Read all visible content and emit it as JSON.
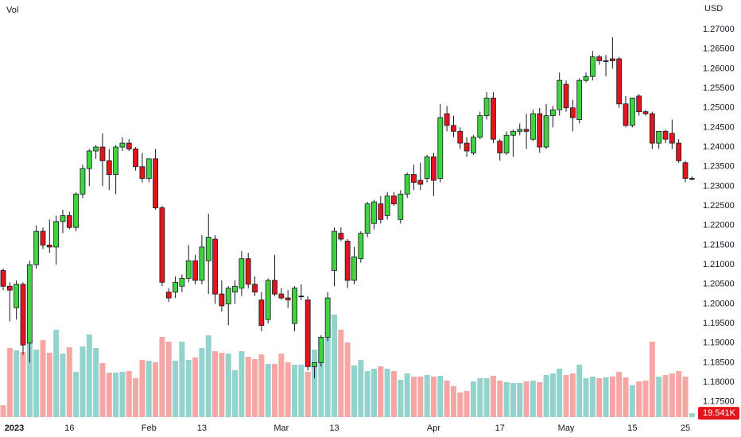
{
  "chart_data": {
    "type": "candlestick",
    "volume_title": "Vol",
    "currency": "USD",
    "categories": [
      "2023",
      null,
      null,
      null,
      null,
      null,
      null,
      null,
      null,
      null,
      "16",
      null,
      null,
      null,
      null,
      null,
      null,
      null,
      null,
      null,
      null,
      null,
      "Feb",
      null,
      null,
      null,
      null,
      null,
      null,
      null,
      "13",
      null,
      null,
      null,
      null,
      null,
      null,
      null,
      null,
      null,
      null,
      null,
      "Mar",
      null,
      null,
      null,
      null,
      null,
      null,
      null,
      "13",
      null,
      null,
      null,
      null,
      null,
      null,
      null,
      null,
      null,
      null,
      null,
      null,
      null,
      null,
      "Apr",
      null,
      null,
      null,
      null,
      null,
      null,
      null,
      null,
      null,
      "17",
      null,
      null,
      null,
      null,
      null,
      null,
      null,
      null,
      null,
      "May",
      null,
      null,
      null,
      null,
      null,
      null,
      null,
      null,
      null,
      "15",
      null,
      null,
      null,
      null,
      null,
      null,
      null,
      "25",
      null
    ],
    "open": [
      1.2085,
      1.2045,
      1.199,
      1.205,
      1.19,
      1.21,
      1.2185,
      1.215,
      1.2145,
      1.221,
      1.2225,
      1.2195,
      1.228,
      1.2345,
      1.239,
      1.24,
      1.2365,
      1.233,
      1.24,
      1.241,
      1.2395,
      1.235,
      1.232,
      1.237,
      1.2245,
      1.203,
      1.203,
      1.2045,
      1.2065,
      1.211,
      1.206,
      1.211,
      1.2165,
      1.2025,
      1.2,
      1.203,
      1.204,
      1.2115,
      1.205,
      1.201,
      1.196,
      1.206,
      1.2025,
      1.2015,
      1.195,
      1.202,
      1.201,
      1.184,
      1.185,
      1.1915,
      1.2085,
      1.218,
      1.216,
      1.206,
      1.2115,
      1.218,
      1.2205,
      1.2255,
      1.2225,
      1.2275,
      1.2215,
      1.228,
      1.233,
      1.2315,
      1.232,
      1.2375,
      1.232,
      1.2485,
      1.2455,
      1.244,
      1.241,
      1.2385,
      1.2425,
      1.248,
      1.2525,
      1.2415,
      1.2385,
      1.243,
      1.244,
      1.2445,
      1.242,
      1.2485,
      1.24,
      1.248,
      1.2495,
      1.256,
      1.25,
      1.247,
      1.257,
      1.258,
      1.263,
      1.262,
      1.2625,
      1.2625,
      1.251,
      1.2455,
      1.253,
      1.249,
      1.2485,
      1.241,
      1.244,
      1.2435,
      1.241,
      1.236,
      1.232
    ],
    "high": [
      1.209,
      1.2055,
      1.206,
      1.2055,
      1.211,
      1.22,
      1.2195,
      1.2215,
      1.2225,
      1.224,
      1.2235,
      1.2285,
      1.2355,
      1.2395,
      1.2405,
      1.2435,
      1.2395,
      1.2405,
      1.2425,
      1.242,
      1.24,
      1.2385,
      1.237,
      1.2395,
      1.225,
      1.204,
      1.207,
      1.2075,
      1.215,
      1.2125,
      1.2175,
      1.223,
      1.2175,
      1.206,
      1.2045,
      1.206,
      1.2135,
      1.213,
      1.207,
      1.203,
      1.2065,
      1.2125,
      1.204,
      1.2035,
      1.2045,
      1.205,
      1.202,
      1.185,
      1.192,
      1.203,
      1.2195,
      1.2195,
      1.2165,
      1.2145,
      1.2185,
      1.226,
      1.2265,
      1.2275,
      1.2285,
      1.2285,
      1.229,
      1.2335,
      1.2355,
      1.236,
      1.238,
      1.2385,
      1.251,
      1.2505,
      1.248,
      1.245,
      1.2425,
      1.243,
      1.249,
      1.254,
      1.254,
      1.242,
      1.244,
      1.2445,
      1.246,
      1.2485,
      1.2495,
      1.25,
      1.251,
      1.2505,
      1.259,
      1.257,
      1.252,
      1.2575,
      1.259,
      1.2645,
      1.2635,
      1.2635,
      1.268,
      1.263,
      1.253,
      1.2525,
      1.2535,
      1.2495,
      1.249,
      1.244,
      1.2445,
      1.247,
      1.242,
      1.2365,
      1.2325
    ],
    "low": [
      1.2035,
      1.1955,
      1.196,
      1.187,
      1.185,
      1.209,
      1.214,
      1.213,
      1.21,
      1.218,
      1.219,
      1.2185,
      1.227,
      1.23,
      1.237,
      1.23,
      1.229,
      1.228,
      1.239,
      1.239,
      1.234,
      1.231,
      1.231,
      1.224,
      1.2045,
      1.2005,
      1.2015,
      1.203,
      1.2055,
      1.205,
      1.205,
      1.2025,
      1.2,
      1.198,
      1.1945,
      1.2,
      1.202,
      1.204,
      1.202,
      1.193,
      1.195,
      1.202,
      1.201,
      1.199,
      1.193,
      1.201,
      1.183,
      1.181,
      1.184,
      1.1905,
      1.2045,
      1.216,
      1.204,
      1.205,
      1.2105,
      1.217,
      1.219,
      1.2205,
      1.2215,
      1.225,
      1.2205,
      1.227,
      1.229,
      1.229,
      1.231,
      1.2275,
      1.231,
      1.244,
      1.2425,
      1.2395,
      1.2375,
      1.238,
      1.242,
      1.247,
      1.241,
      1.2365,
      1.238,
      1.2375,
      1.243,
      1.2395,
      1.2415,
      1.2385,
      1.2395,
      1.245,
      1.248,
      1.249,
      1.244,
      1.246,
      1.2565,
      1.257,
      1.261,
      1.258,
      1.26,
      1.25,
      1.245,
      1.245,
      1.248,
      1.248,
      1.2395,
      1.2395,
      1.241,
      1.2395,
      1.236,
      1.231,
      1.2315
    ],
    "close": [
      1.2045,
      1.2035,
      1.205,
      1.1895,
      1.21,
      1.2185,
      1.215,
      1.2145,
      1.221,
      1.2225,
      1.2195,
      1.228,
      1.2345,
      1.239,
      1.24,
      1.2365,
      1.233,
      1.24,
      1.241,
      1.2395,
      1.235,
      1.232,
      1.237,
      1.2245,
      1.2055,
      1.2015,
      1.2055,
      1.2065,
      1.211,
      1.206,
      1.2145,
      1.217,
      1.2025,
      1.1995,
      1.204,
      1.2045,
      1.2115,
      1.205,
      1.203,
      1.1945,
      1.206,
      1.2025,
      1.2015,
      1.201,
      1.204,
      1.202,
      1.184,
      1.185,
      1.1915,
      1.2015,
      1.2185,
      1.2165,
      1.206,
      1.212,
      1.218,
      1.2255,
      1.226,
      1.2215,
      1.2275,
      1.2255,
      1.228,
      1.233,
      1.231,
      1.2305,
      1.2375,
      1.2315,
      1.2475,
      1.2455,
      1.244,
      1.241,
      1.239,
      1.2425,
      1.248,
      1.2525,
      1.242,
      1.2385,
      1.243,
      1.244,
      1.2445,
      1.244,
      1.2485,
      1.24,
      1.248,
      1.2495,
      1.257,
      1.25,
      1.2475,
      1.257,
      1.258,
      1.263,
      1.262,
      1.262,
      1.262,
      1.251,
      1.2455,
      1.2525,
      1.249,
      1.2485,
      1.241,
      1.244,
      1.242,
      1.241,
      1.2365,
      1.232,
      1.232
    ],
    "volume": [
      60000,
      348000,
      336000,
      328000,
      380000,
      340000,
      388000,
      324000,
      440000,
      320000,
      352000,
      228000,
      356000,
      416000,
      348000,
      272000,
      224000,
      224000,
      228000,
      232000,
      196000,
      288000,
      284000,
      276000,
      404000,
      380000,
      284000,
      380000,
      288000,
      300000,
      348000,
      412000,
      332000,
      324000,
      320000,
      236000,
      332000,
      304000,
      292000,
      316000,
      268000,
      268000,
      320000,
      276000,
      264000,
      264000,
      228000,
      340000,
      396000,
      436000,
      516000,
      440000,
      376000,
      260000,
      288000,
      232000,
      244000,
      256000,
      244000,
      232000,
      188000,
      220000,
      204000,
      204000,
      212000,
      204000,
      208000,
      184000,
      156000,
      124000,
      132000,
      180000,
      196000,
      196000,
      208000,
      184000,
      176000,
      172000,
      172000,
      180000,
      184000,
      176000,
      212000,
      220000,
      244000,
      212000,
      220000,
      264000,
      196000,
      204000,
      196000,
      200000,
      204000,
      228000,
      200000,
      160000,
      180000,
      184000,
      380000,
      204000,
      212000,
      220000,
      232000,
      204000,
      19541
    ],
    "volume_last_label": "19.541K",
    "ylim": [
      1.1705,
      1.2775
    ],
    "yticks": [
      {
        "value": 1.27,
        "label": "1.27000"
      },
      {
        "value": 1.265,
        "label": "1.26500"
      },
      {
        "value": 1.26,
        "label": "1.26000"
      },
      {
        "value": 1.255,
        "label": "1.25500"
      },
      {
        "value": 1.25,
        "label": "1.25000"
      },
      {
        "value": 1.245,
        "label": "1.24500"
      },
      {
        "value": 1.24,
        "label": "1.24000"
      },
      {
        "value": 1.235,
        "label": "1.23500"
      },
      {
        "value": 1.23,
        "label": "1.23000"
      },
      {
        "value": 1.225,
        "label": "1.22500"
      },
      {
        "value": 1.22,
        "label": "1.22000"
      },
      {
        "value": 1.215,
        "label": "1.21500"
      },
      {
        "value": 1.21,
        "label": "1.21000"
      },
      {
        "value": 1.205,
        "label": "1.20500"
      },
      {
        "value": 1.2,
        "label": "1.20000"
      },
      {
        "value": 1.195,
        "label": "1.19500"
      },
      {
        "value": 1.19,
        "label": "1.19000"
      },
      {
        "value": 1.185,
        "label": "1.18500"
      },
      {
        "value": 1.18,
        "label": "1.18000"
      },
      {
        "value": 1.175,
        "label": "1.17500"
      }
    ],
    "grid": false,
    "up_color": "#3fd43f",
    "down_color": "#e3151c",
    "volume_up_color": "#93d3cd",
    "volume_down_color": "#f6a6a4"
  }
}
